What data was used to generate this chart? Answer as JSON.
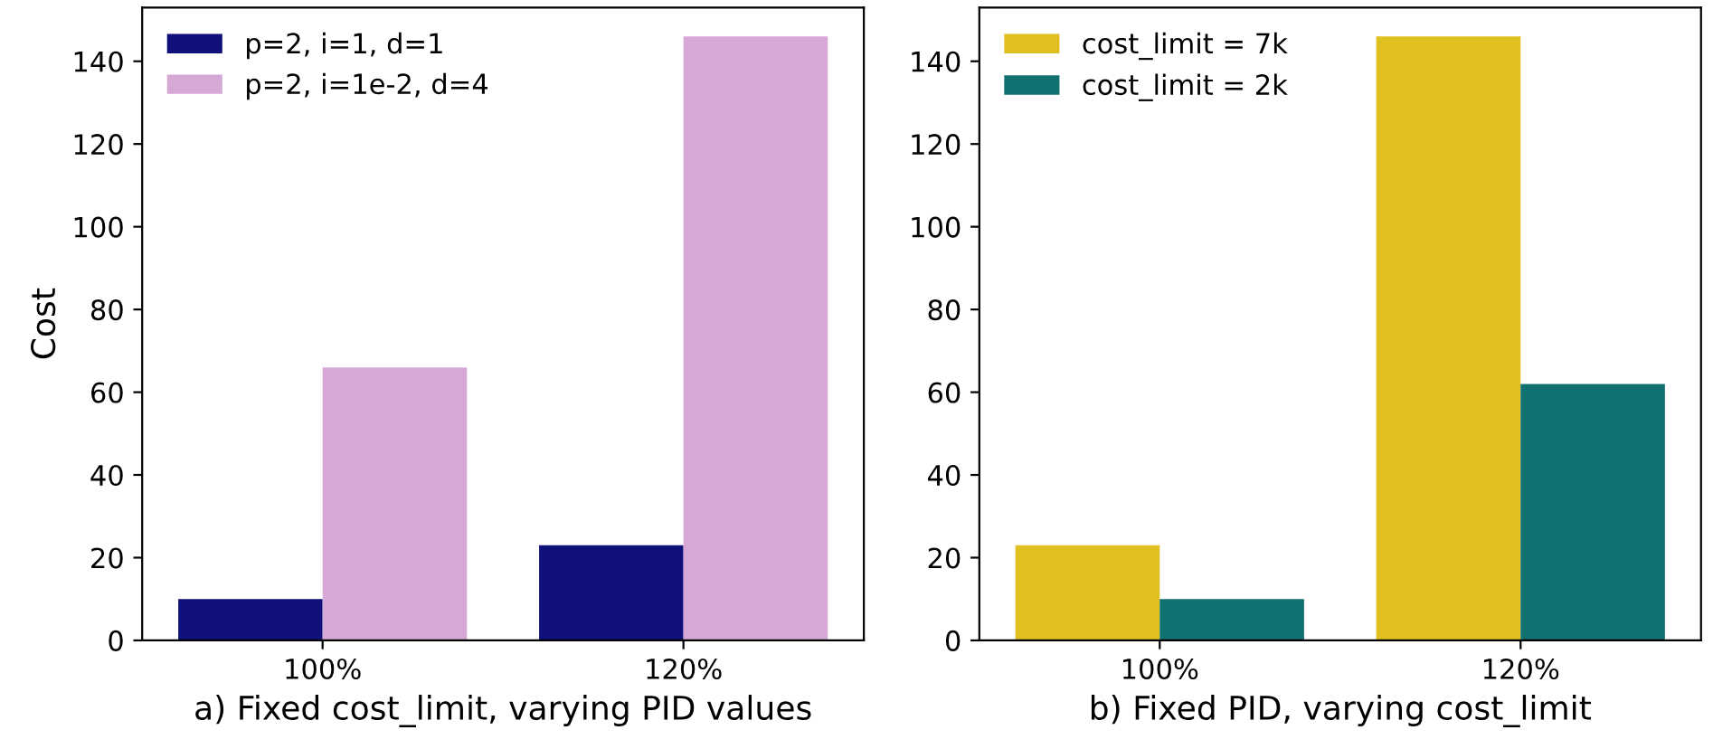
{
  "chart_data": [
    {
      "type": "bar",
      "xlabel": "a) Fixed cost_limit, varying PID values",
      "ylabel": "Cost",
      "categories": [
        "100%",
        "120%"
      ],
      "ylim": [
        0,
        153
      ],
      "yticks": [
        0,
        20,
        40,
        60,
        80,
        100,
        120,
        140
      ],
      "legend": "top left",
      "grid": false,
      "series": [
        {
          "name": "p=2, i=1, d=1",
          "color": "#10107a",
          "values": [
            10,
            23
          ]
        },
        {
          "name": "p=2, i=1e-2, d=4",
          "color": "#d6a8d6",
          "values": [
            66,
            146
          ]
        }
      ]
    },
    {
      "type": "bar",
      "xlabel": "b) Fixed PID, varying cost_limit",
      "categories": [
        "100%",
        "120%"
      ],
      "ylim": [
        0,
        153
      ],
      "yticks": [
        0,
        20,
        40,
        60,
        80,
        100,
        120,
        140
      ],
      "legend": "top left",
      "grid": false,
      "series": [
        {
          "name": "cost_limit = 7k",
          "color": "#dfc020",
          "values": [
            23,
            146
          ]
        },
        {
          "name": "cost_limit = 2k",
          "color": "#117070",
          "values": [
            10,
            62
          ]
        }
      ]
    }
  ]
}
